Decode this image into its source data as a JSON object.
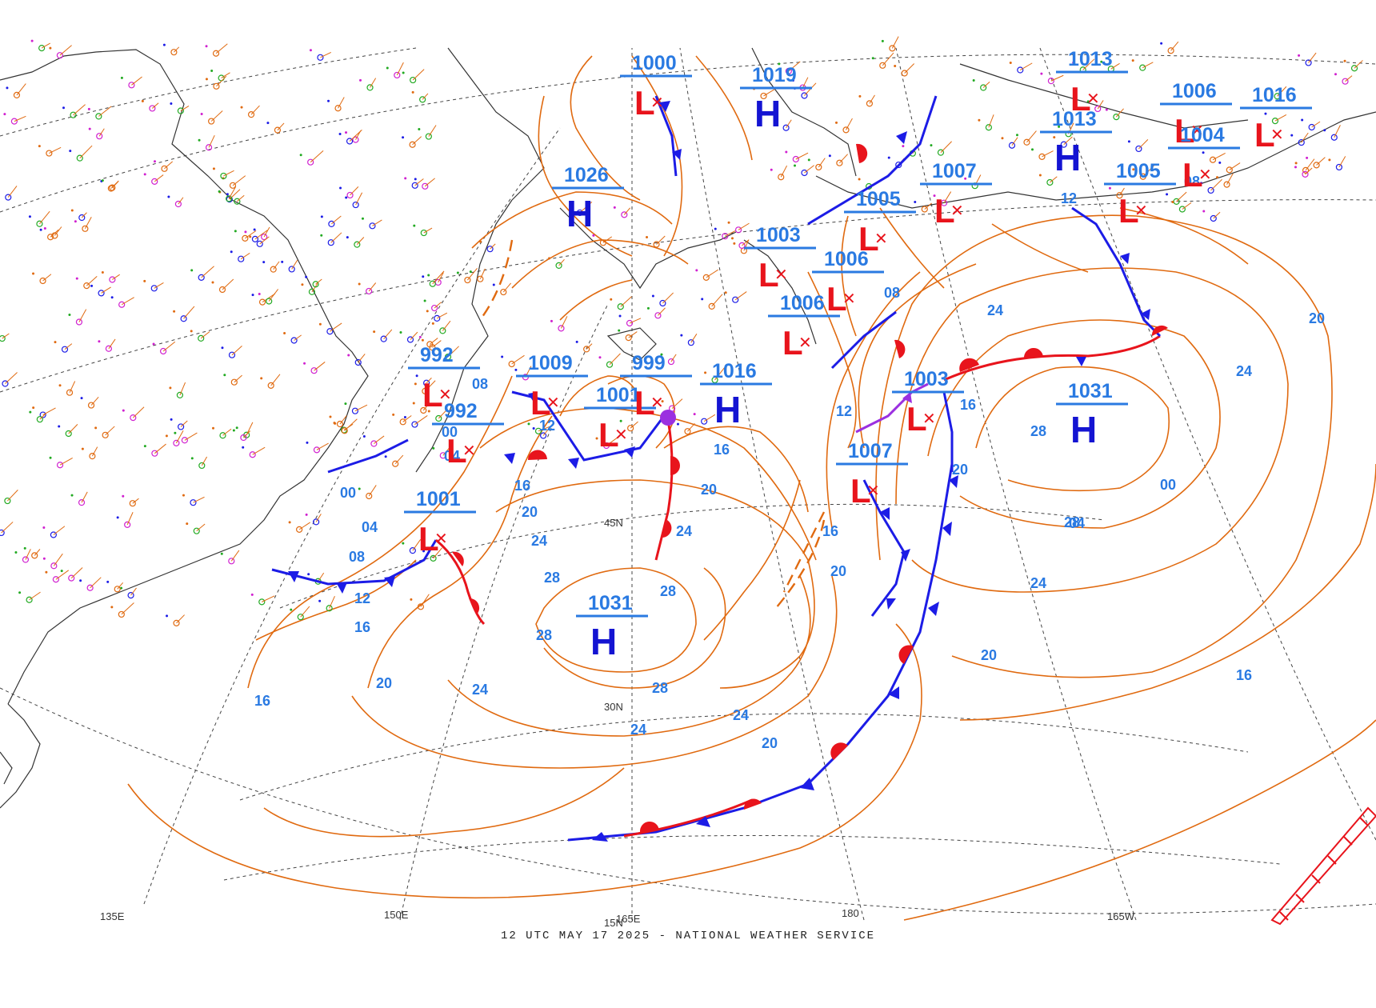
{
  "caption": "12 UTC MAY 17 2025 - NATIONAL WEATHER SERVICE",
  "colors": {
    "isobar": "#e06a10",
    "isobar_label": "#2a7ae2",
    "low_symbol": "#e8141c",
    "high_symbol": "#1414d2",
    "cold_front": "#1c1ce6",
    "warm_front": "#e8141c",
    "occluded_front": "#9b30e0",
    "grid": "#444444",
    "coastline": "#333333"
  },
  "grid_labels": {
    "lon": [
      "150E",
      "165E",
      "180",
      "165W"
    ],
    "lat": [
      "45N",
      "30N",
      "15N"
    ],
    "corner": "135E"
  },
  "pressure_centers": [
    {
      "type": "L",
      "value": "1000"
    },
    {
      "type": "H",
      "value": "1019"
    },
    {
      "type": "H",
      "value": "1026"
    },
    {
      "type": "L",
      "value": "1007"
    },
    {
      "type": "L",
      "value": "1013"
    },
    {
      "type": "H",
      "value": "1013"
    },
    {
      "type": "L",
      "value": "1005"
    },
    {
      "type": "L",
      "value": "1006"
    },
    {
      "type": "L",
      "value": "1004"
    },
    {
      "type": "L",
      "value": "1016"
    },
    {
      "type": "L",
      "value": "1003"
    },
    {
      "type": "L",
      "value": "1005"
    },
    {
      "type": "L",
      "value": "1006"
    },
    {
      "type": "L",
      "value": "1006"
    },
    {
      "type": "L",
      "value": "992"
    },
    {
      "type": "L",
      "value": "992"
    },
    {
      "type": "L",
      "value": "1009"
    },
    {
      "type": "L",
      "value": "1001"
    },
    {
      "type": "L",
      "value": "999"
    },
    {
      "type": "H",
      "value": "1016"
    },
    {
      "type": "L",
      "value": "1003"
    },
    {
      "type": "H",
      "value": "1031"
    },
    {
      "type": "L",
      "value": "1007"
    },
    {
      "type": "L",
      "value": "1001"
    },
    {
      "type": "H",
      "value": "1031"
    }
  ],
  "isobar_labels": [
    "04",
    "08",
    "12",
    "16",
    "20",
    "24",
    "28",
    "00",
    "16",
    "20",
    "24",
    "28",
    "24",
    "20",
    "16",
    "12",
    "08",
    "04",
    "00",
    "16",
    "20",
    "24",
    "28",
    "28",
    "24",
    "20",
    "16",
    "12",
    "08",
    "24",
    "28",
    "20",
    "16",
    "12",
    "08",
    "04",
    "00",
    "16",
    "20",
    "24",
    "28",
    "24",
    "20"
  ]
}
